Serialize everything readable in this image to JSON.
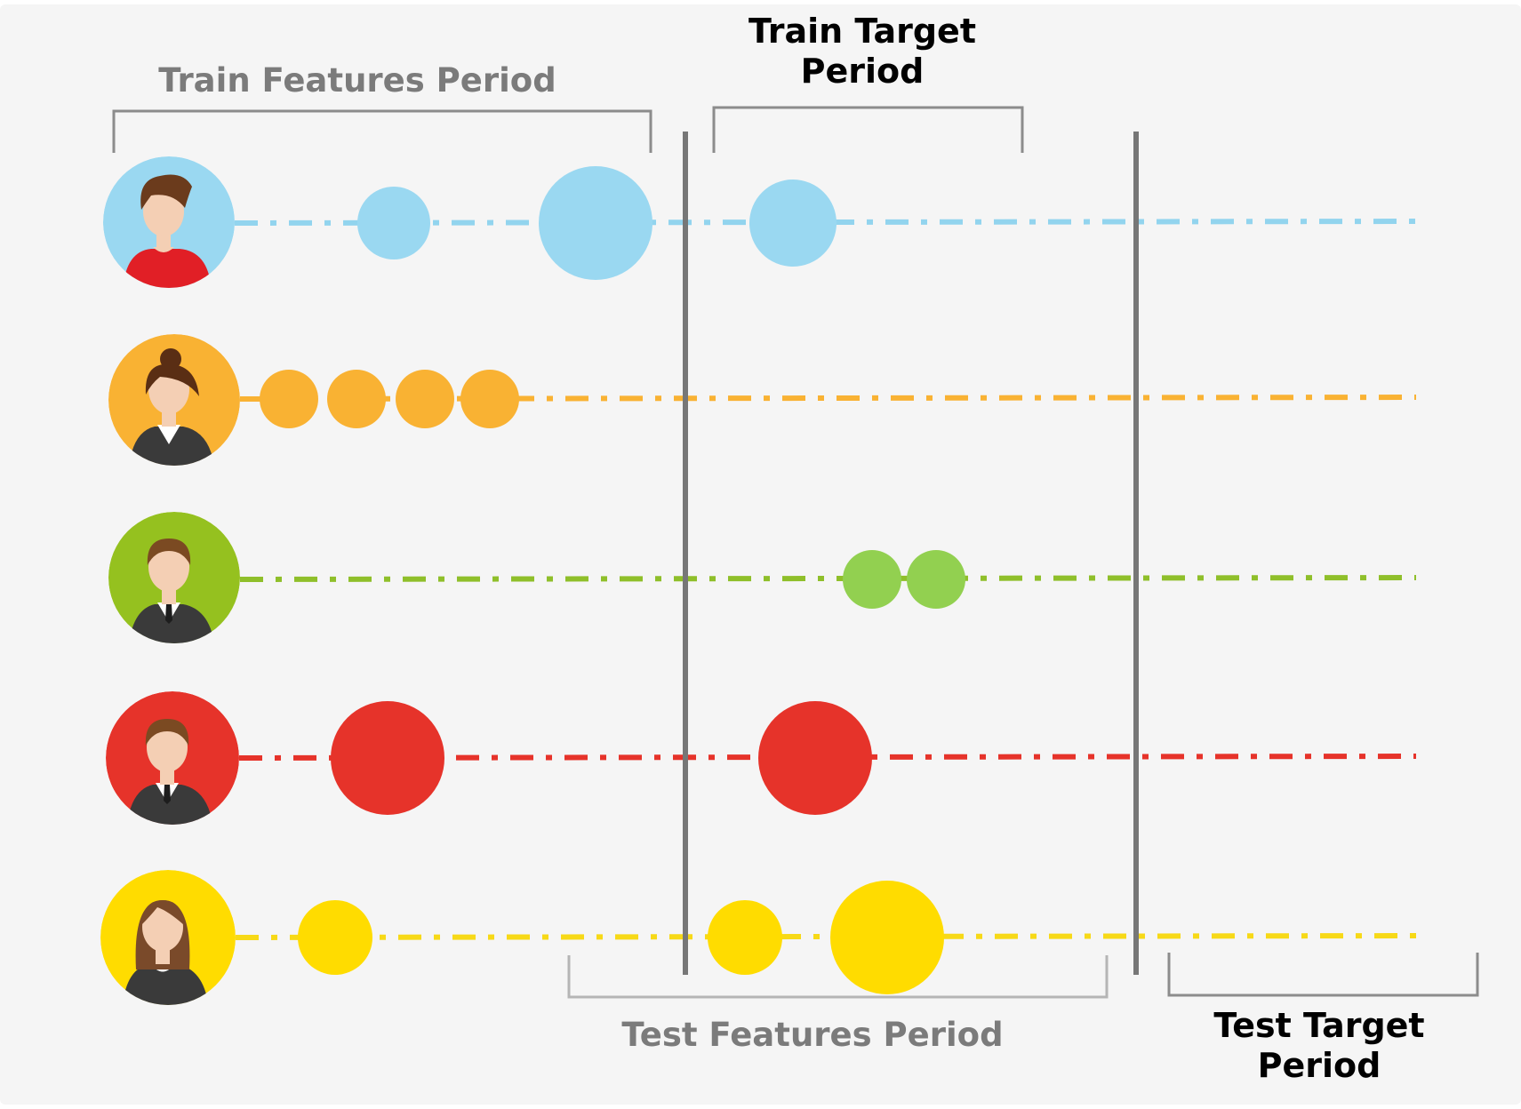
{
  "labels": {
    "train_features": "Train Features Period",
    "train_target_line1": "Train Target",
    "train_target_line2": "Period",
    "test_features": "Test Features Period",
    "test_target_line1": "Test Target",
    "test_target_line2": "Period"
  },
  "colors": {
    "background": "#f5f5f5",
    "divider": "#777777",
    "bracket": "#8c8c8c",
    "bracket_light": "#b5b5b5",
    "skin": "#f4cfb4",
    "suit": "#3a3a3a"
  },
  "customers": [
    {
      "avatar": "man-red-shirt-icon",
      "color": "#9ad8f1",
      "line": "#92d4ee"
    },
    {
      "avatar": "woman-bun-suit-icon",
      "color": "#f9b233",
      "line": "#f9b233"
    },
    {
      "avatar": "man-suit-tie-icon",
      "color": "#95c11f",
      "line": "#8fbf2a"
    },
    {
      "avatar": "man-suit-tie-icon",
      "color": "#e6332a",
      "line": "#e6332a"
    },
    {
      "avatar": "woman-long-hair-icon",
      "color": "#ffdc00",
      "line": "#f7d917"
    }
  ]
}
